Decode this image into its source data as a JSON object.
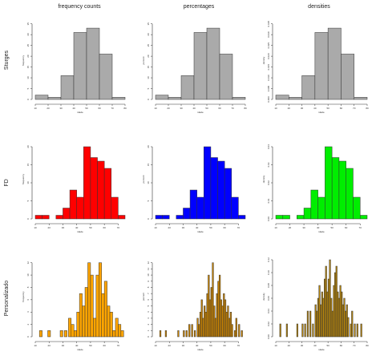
{
  "figure": {
    "column_titles": [
      "frequency counts",
      "percentages",
      "densities"
    ],
    "row_titles": [
      "Sturges",
      "FD",
      "Personalizado"
    ]
  },
  "chart_data": [
    {
      "type": "bar",
      "row": 0,
      "col": 0,
      "xlabel": "idade",
      "ylabel": "frequency",
      "fill": "#aaaaaa",
      "xlim": [
        10,
        80
      ],
      "ylim": [
        0,
        36
      ],
      "xticks": [
        10,
        20,
        30,
        40,
        50,
        60,
        70,
        80
      ],
      "yticks": [
        0,
        5,
        10,
        15,
        20,
        25,
        30,
        35
      ],
      "bins": [
        [
          10,
          20,
          2
        ],
        [
          20,
          30,
          1
        ],
        [
          30,
          40,
          11
        ],
        [
          40,
          50,
          31
        ],
        [
          50,
          60,
          33
        ],
        [
          60,
          70,
          21
        ],
        [
          70,
          80,
          1
        ]
      ]
    },
    {
      "type": "bar",
      "row": 0,
      "col": 1,
      "xlabel": "idade",
      "ylabel": "percent",
      "fill": "#aaaaaa",
      "xlim": [
        10,
        80
      ],
      "ylim": [
        0,
        36
      ],
      "xticks": [
        10,
        20,
        30,
        40,
        50,
        60,
        70,
        80
      ],
      "yticks": [
        0,
        5,
        10,
        15,
        20,
        25,
        30,
        35
      ],
      "bins": [
        [
          10,
          20,
          2
        ],
        [
          20,
          30,
          1
        ],
        [
          30,
          40,
          11
        ],
        [
          40,
          50,
          31
        ],
        [
          50,
          60,
          33
        ],
        [
          60,
          70,
          21
        ],
        [
          70,
          80,
          1
        ]
      ]
    },
    {
      "type": "bar",
      "row": 0,
      "col": 2,
      "xlabel": "idade",
      "ylabel": "density",
      "fill": "#aaaaaa",
      "xlim": [
        10,
        80
      ],
      "ylim": [
        0,
        0.036
      ],
      "xticks": [
        10,
        20,
        30,
        40,
        50,
        60,
        70,
        80
      ],
      "yticks": [
        0,
        0.005,
        0.01,
        0.015,
        0.02,
        0.025,
        0.03,
        0.035
      ],
      "ytick_labels": [
        "0.000",
        "0.005",
        "0.010",
        "0.015",
        "0.020",
        "0.025",
        "0.030",
        "0.035"
      ],
      "bins": [
        [
          10,
          20,
          0.002
        ],
        [
          20,
          30,
          0.001
        ],
        [
          30,
          40,
          0.011
        ],
        [
          40,
          50,
          0.031
        ],
        [
          50,
          60,
          0.033
        ],
        [
          60,
          70,
          0.021
        ],
        [
          70,
          80,
          0.001
        ]
      ]
    },
    {
      "type": "bar",
      "row": 1,
      "col": 0,
      "xlabel": "idade",
      "ylabel": "frequency",
      "fill": "#ff0000",
      "xlim": [
        10,
        75
      ],
      "ylim": [
        0,
        22
      ],
      "xticks": [
        10,
        20,
        30,
        40,
        50,
        60,
        70
      ],
      "yticks": [
        0,
        5,
        10,
        15,
        20
      ],
      "bins": [
        [
          10,
          15,
          1
        ],
        [
          15,
          20,
          1
        ],
        [
          20,
          25,
          0
        ],
        [
          25,
          30,
          1
        ],
        [
          30,
          35,
          3
        ],
        [
          35,
          40,
          8
        ],
        [
          40,
          45,
          6
        ],
        [
          45,
          50,
          20
        ],
        [
          50,
          55,
          17
        ],
        [
          55,
          60,
          16
        ],
        [
          60,
          65,
          14
        ],
        [
          65,
          70,
          6
        ],
        [
          70,
          75,
          1
        ]
      ]
    },
    {
      "type": "bar",
      "row": 1,
      "col": 1,
      "xlabel": "idade",
      "ylabel": "percent",
      "fill": "#0000ff",
      "xlim": [
        10,
        75
      ],
      "ylim": [
        0,
        22
      ],
      "xticks": [
        10,
        20,
        30,
        40,
        50,
        60,
        70
      ],
      "yticks": [
        0,
        5,
        10,
        15,
        20
      ],
      "bins": [
        [
          10,
          15,
          1
        ],
        [
          15,
          20,
          1
        ],
        [
          20,
          25,
          0
        ],
        [
          25,
          30,
          1
        ],
        [
          30,
          35,
          3
        ],
        [
          35,
          40,
          8
        ],
        [
          40,
          45,
          6
        ],
        [
          45,
          50,
          20
        ],
        [
          50,
          55,
          17
        ],
        [
          55,
          60,
          16
        ],
        [
          60,
          65,
          14
        ],
        [
          65,
          70,
          6
        ],
        [
          70,
          75,
          1
        ]
      ]
    },
    {
      "type": "bar",
      "row": 1,
      "col": 2,
      "xlabel": "idade",
      "ylabel": "density",
      "fill": "#00ee00",
      "xlim": [
        10,
        75
      ],
      "ylim": [
        0,
        0.044
      ],
      "xticks": [
        10,
        20,
        30,
        40,
        50,
        60,
        70
      ],
      "yticks": [
        0,
        0.01,
        0.02,
        0.03,
        0.04
      ],
      "ytick_labels": [
        "0.00",
        "0.01",
        "0.02",
        "0.03",
        "0.04"
      ],
      "bins": [
        [
          10,
          15,
          0.002
        ],
        [
          15,
          20,
          0.002
        ],
        [
          20,
          25,
          0
        ],
        [
          25,
          30,
          0.002
        ],
        [
          30,
          35,
          0.006
        ],
        [
          35,
          40,
          0.016
        ],
        [
          40,
          45,
          0.012
        ],
        [
          45,
          50,
          0.04
        ],
        [
          50,
          55,
          0.034
        ],
        [
          55,
          60,
          0.032
        ],
        [
          60,
          65,
          0.028
        ],
        [
          65,
          70,
          0.012
        ],
        [
          70,
          75,
          0.002
        ]
      ]
    },
    {
      "type": "bar",
      "row": 2,
      "col": 0,
      "xlabel": "idade",
      "ylabel": "frequency",
      "fill": "#ffa500",
      "xlim": [
        10,
        75
      ],
      "ylim": [
        0,
        13
      ],
      "xticks": [
        10,
        20,
        30,
        40,
        50,
        60,
        70
      ],
      "yticks": [
        0,
        2,
        4,
        6,
        8,
        10,
        12
      ],
      "bins": [
        [
          13,
          15,
          1
        ],
        [
          19,
          21,
          1
        ],
        [
          28,
          30,
          1
        ],
        [
          31,
          33,
          1
        ],
        [
          34,
          36,
          3
        ],
        [
          36,
          38,
          2
        ],
        [
          38,
          40,
          1
        ],
        [
          40,
          42,
          4
        ],
        [
          42,
          44,
          7
        ],
        [
          44,
          46,
          5
        ],
        [
          46,
          48,
          8
        ],
        [
          48,
          50,
          12
        ],
        [
          50,
          52,
          10
        ],
        [
          52,
          54,
          3
        ],
        [
          54,
          56,
          10
        ],
        [
          56,
          58,
          12
        ],
        [
          58,
          60,
          7
        ],
        [
          60,
          62,
          9
        ],
        [
          62,
          64,
          5
        ],
        [
          64,
          66,
          4
        ],
        [
          66,
          68,
          1
        ],
        [
          68,
          70,
          3
        ],
        [
          70,
          72,
          2
        ],
        [
          72,
          74,
          1
        ]
      ]
    },
    {
      "type": "bar",
      "row": 2,
      "col": 1,
      "xlabel": "idade",
      "ylabel": "percent",
      "fill": "#cd8500",
      "xlim": [
        10,
        75
      ],
      "ylim": [
        0,
        13
      ],
      "xticks": [
        10,
        20,
        30,
        40,
        50,
        60,
        70
      ],
      "yticks": [
        0,
        1,
        2,
        3,
        4,
        5,
        6,
        7,
        8,
        9,
        10,
        11,
        12
      ],
      "bins": [
        [
          13,
          14,
          1
        ],
        [
          17,
          18,
          1
        ],
        [
          26,
          27,
          1
        ],
        [
          30,
          31,
          1
        ],
        [
          32,
          33,
          1
        ],
        [
          34,
          35,
          2
        ],
        [
          36,
          37,
          2
        ],
        [
          38,
          39,
          1
        ],
        [
          40,
          41,
          3
        ],
        [
          41,
          42,
          2
        ],
        [
          42,
          43,
          4
        ],
        [
          43,
          44,
          6
        ],
        [
          44,
          45,
          3
        ],
        [
          45,
          46,
          5
        ],
        [
          46,
          47,
          4
        ],
        [
          47,
          48,
          7
        ],
        [
          48,
          49,
          10
        ],
        [
          49,
          50,
          6
        ],
        [
          50,
          51,
          8
        ],
        [
          51,
          52,
          12
        ],
        [
          52,
          53,
          5
        ],
        [
          53,
          54,
          3
        ],
        [
          54,
          55,
          7
        ],
        [
          55,
          56,
          9
        ],
        [
          56,
          57,
          10
        ],
        [
          57,
          58,
          6
        ],
        [
          58,
          59,
          5
        ],
        [
          59,
          60,
          7
        ],
        [
          60,
          61,
          6
        ],
        [
          61,
          62,
          4
        ],
        [
          62,
          63,
          5
        ],
        [
          63,
          64,
          3
        ],
        [
          64,
          65,
          4
        ],
        [
          65,
          66,
          2
        ],
        [
          67,
          68,
          1
        ],
        [
          68,
          69,
          3
        ],
        [
          70,
          71,
          2
        ],
        [
          72,
          73,
          1
        ]
      ]
    },
    {
      "type": "bar",
      "row": 2,
      "col": 2,
      "xlabel": "idade",
      "ylabel": "density",
      "fill": "#b8860b",
      "xlim": [
        10,
        80
      ],
      "ylim": [
        0,
        0.125
      ],
      "xticks": [
        10,
        20,
        30,
        40,
        50,
        60,
        70,
        80
      ],
      "yticks": [
        0,
        0.02,
        0.04,
        0.06,
        0.08,
        0.1,
        0.12
      ],
      "ytick_labels": [
        "0.00",
        "0.02",
        "0.04",
        "0.06",
        "0.08",
        "0.10",
        "0.12"
      ],
      "bins": [
        [
          13,
          14,
          0.02
        ],
        [
          18,
          19,
          0.02
        ],
        [
          26,
          27,
          0.02
        ],
        [
          30,
          31,
          0.02
        ],
        [
          32,
          33,
          0.02
        ],
        [
          34,
          35,
          0.04
        ],
        [
          36,
          37,
          0.04
        ],
        [
          38,
          39,
          0.02
        ],
        [
          40,
          41,
          0.05
        ],
        [
          41,
          42,
          0.04
        ],
        [
          42,
          43,
          0.06
        ],
        [
          43,
          44,
          0.08
        ],
        [
          44,
          45,
          0.05
        ],
        [
          45,
          46,
          0.07
        ],
        [
          46,
          47,
          0.06
        ],
        [
          47,
          48,
          0.09
        ],
        [
          48,
          49,
          0.11
        ],
        [
          49,
          50,
          0.07
        ],
        [
          50,
          51,
          0.09
        ],
        [
          51,
          52,
          0.12
        ],
        [
          52,
          53,
          0.06
        ],
        [
          53,
          54,
          0.04
        ],
        [
          54,
          55,
          0.08
        ],
        [
          55,
          56,
          0.1
        ],
        [
          56,
          57,
          0.11
        ],
        [
          57,
          58,
          0.07
        ],
        [
          58,
          59,
          0.06
        ],
        [
          59,
          60,
          0.08
        ],
        [
          60,
          61,
          0.07
        ],
        [
          61,
          62,
          0.05
        ],
        [
          62,
          63,
          0.06
        ],
        [
          63,
          64,
          0.04
        ],
        [
          64,
          65,
          0.05
        ],
        [
          65,
          66,
          0.03
        ],
        [
          67,
          68,
          0.02
        ],
        [
          68,
          69,
          0.04
        ],
        [
          70,
          71,
          0.02
        ],
        [
          72,
          73,
          0.02
        ],
        [
          75,
          76,
          0.02
        ]
      ]
    }
  ]
}
